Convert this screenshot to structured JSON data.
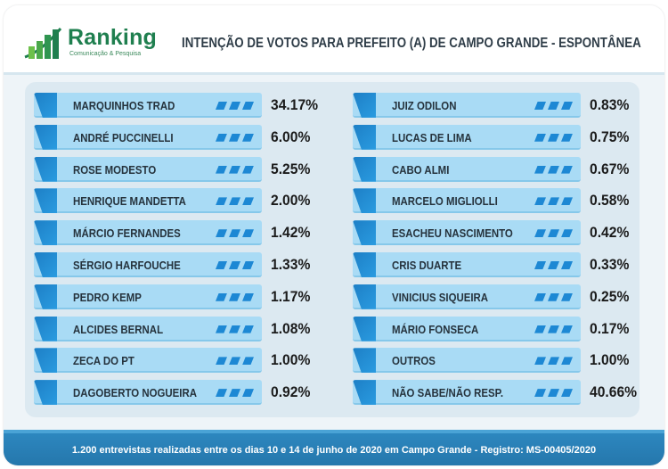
{
  "header": {
    "logo_name": "Ranking",
    "logo_tagline": "Comunicação & Pesquisa",
    "title": "INTENÇÃO DE VOTOS PARA PREFEITO (A) DE CAMPO GRANDE - ESPONTÂNEA"
  },
  "colors": {
    "bar": "#a9dbf5",
    "accent": "#1d7fc6",
    "footer": "#2577ac",
    "logo_green": "#1f7f4f"
  },
  "chart_data": {
    "type": "table",
    "title": "INTENÇÃO DE VOTOS PARA PREFEITO (A) DE CAMPO GRANDE - ESPONTÂNEA",
    "unit": "%",
    "left_column": [
      {
        "name": "MARQUINHOS TRAD",
        "label": "34.17%",
        "value": 34.17
      },
      {
        "name": "ANDRÉ PUCCINELLI",
        "label": "6.00%",
        "value": 6.0
      },
      {
        "name": "ROSE MODESTO",
        "label": "5.25%",
        "value": 5.25
      },
      {
        "name": "HENRIQUE MANDETTA",
        "label": "2.00%",
        "value": 2.0
      },
      {
        "name": "MÁRCIO FERNANDES",
        "label": "1.42%",
        "value": 1.42
      },
      {
        "name": "SÉRGIO HARFOUCHE",
        "label": "1.33%",
        "value": 1.33
      },
      {
        "name": "PEDRO KEMP",
        "label": "1.17%",
        "value": 1.17
      },
      {
        "name": "ALCIDES BERNAL",
        "label": "1.08%",
        "value": 1.08
      },
      {
        "name": "ZECA DO PT",
        "label": "1.00%",
        "value": 1.0
      },
      {
        "name": "DAGOBERTO NOGUEIRA",
        "label": "0.92%",
        "value": 0.92
      }
    ],
    "right_column": [
      {
        "name": "JUIZ ODILON",
        "label": "0.83%",
        "value": 0.83
      },
      {
        "name": "LUCAS DE LIMA",
        "label": "0.75%",
        "value": 0.75
      },
      {
        "name": "CABO ALMI",
        "label": "0.67%",
        "value": 0.67
      },
      {
        "name": "MARCELO MIGLIOLLI",
        "label": "0.58%",
        "value": 0.58
      },
      {
        "name": "ESACHEU NASCIMENTO",
        "label": "0.42%",
        "value": 0.42
      },
      {
        "name": "CRIS DUARTE",
        "label": "0.33%",
        "value": 0.33
      },
      {
        "name": "VINICIUS SIQUEIRA",
        "label": "0.25%",
        "value": 0.25
      },
      {
        "name": "MÁRIO FONSECA",
        "label": "0.17%",
        "value": 0.17
      },
      {
        "name": "OUTROS",
        "label": "1.00%",
        "value": 1.0
      },
      {
        "name": "NÃO SABE/NÃO RESP.",
        "label": "40.66%",
        "value": 40.66
      }
    ]
  },
  "footer": {
    "text": "1.200 entrevistas realizadas entre os dias 10 e 14 de junho de 2020 em Campo Grande - Registro: MS-00405/2020"
  }
}
